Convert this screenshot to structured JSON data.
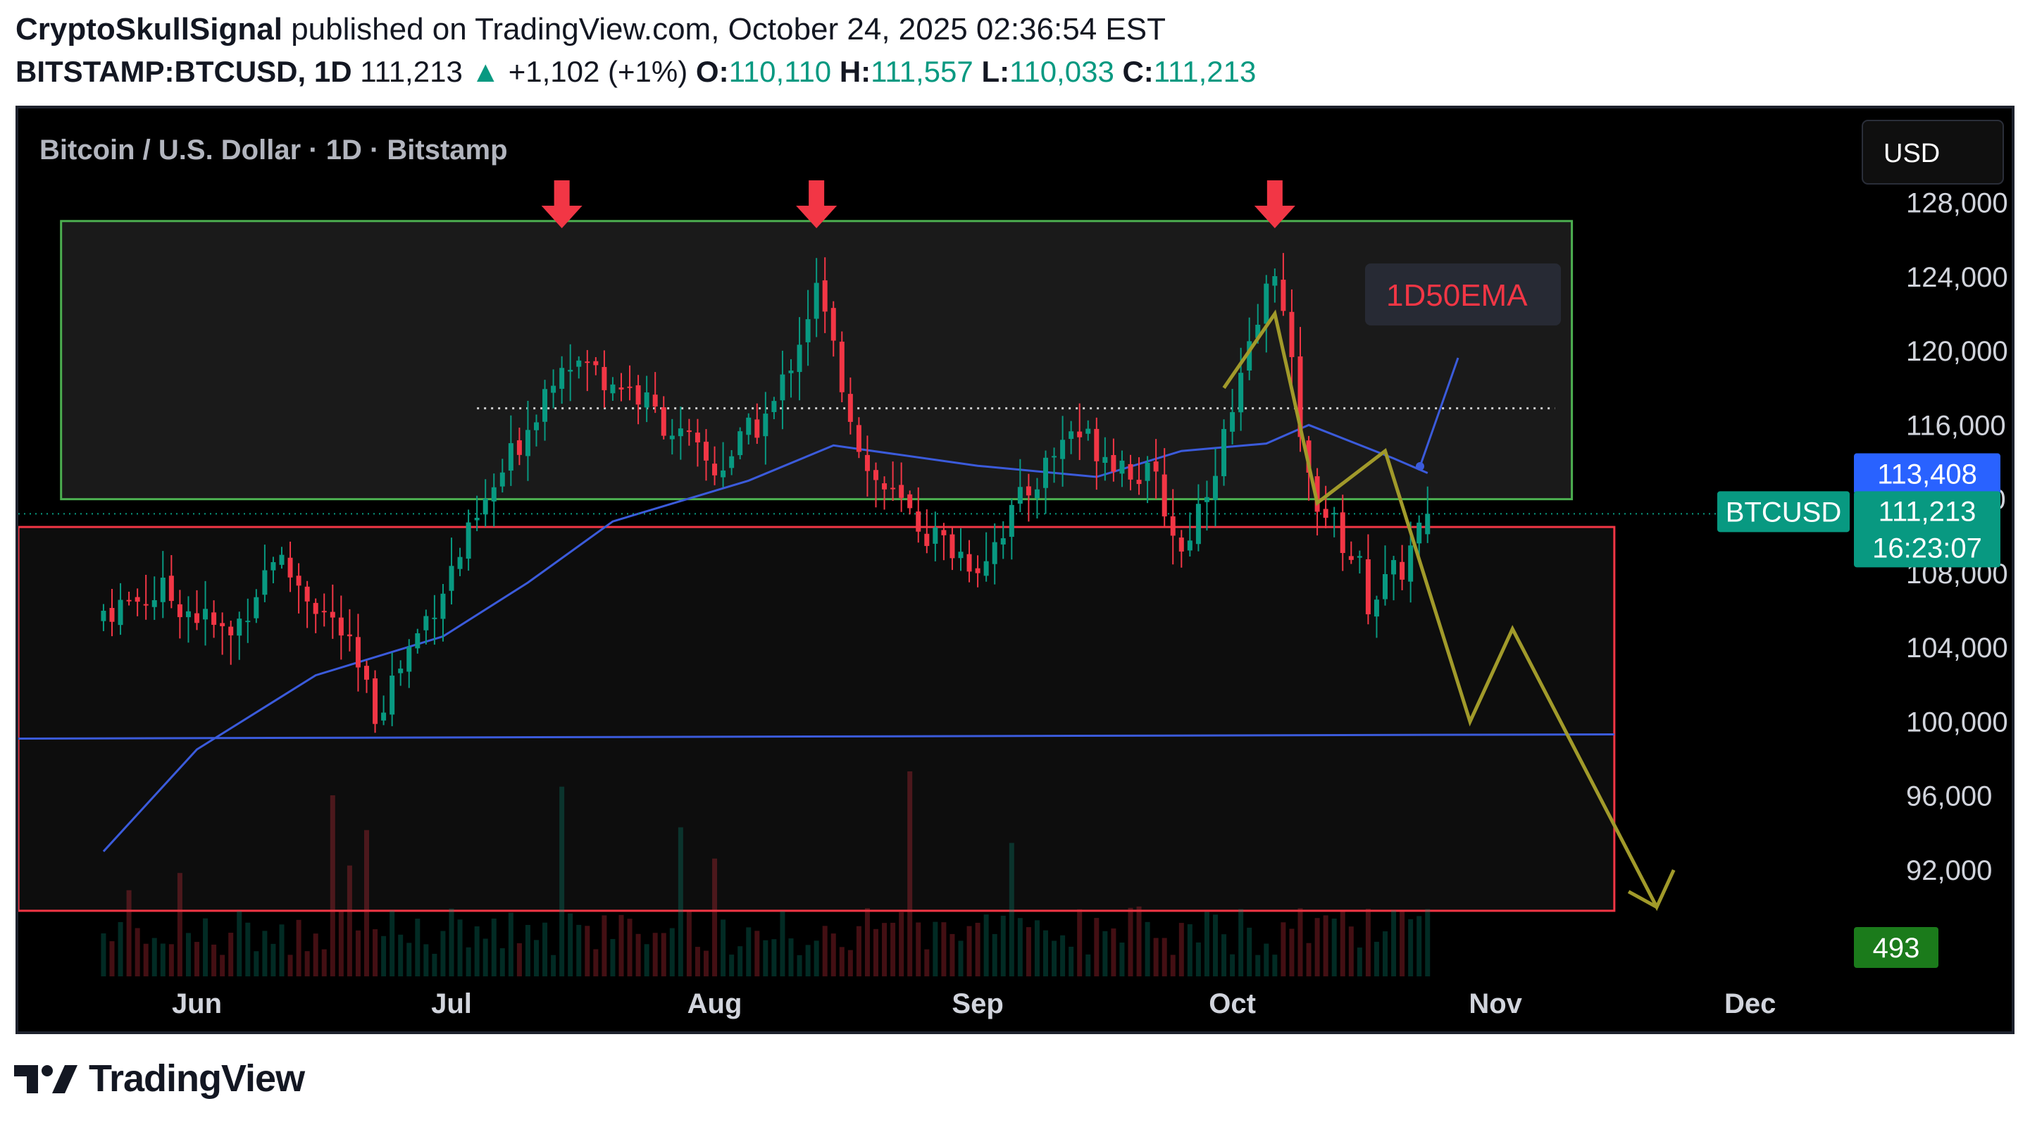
{
  "header": {
    "author": "CryptoSkullSignal",
    "published_text": "published on TradingView.com, October 24, 2025 02:36:54 EST",
    "symbol_interval": "BITSTAMP:BTCUSD, 1D",
    "last_price": "111,213",
    "change_arrow": "▲",
    "change": "+1,102 (+1%)",
    "o_label": "O:",
    "o_value": "110,110",
    "h_label": "H:",
    "h_value": "111,557",
    "l_label": "L:",
    "l_value": "110,033",
    "c_label": "C:",
    "c_value": "111,213"
  },
  "chart": {
    "legend_title": "Bitcoin / U.S. Dollar · 1D · Bitstamp",
    "currency_button": "USD",
    "ema_annotation": "1D50EMA",
    "symbol_tag": "BTCUSD",
    "price_tag": "111,213",
    "countdown": "16:23:07",
    "ema_tag": "113,408",
    "volume_tag": "493"
  },
  "chart_data": {
    "type": "candlestick",
    "title": "Bitcoin / U.S. Dollar · 1D · Bitstamp",
    "x_ticks": [
      "Jun",
      "Jul",
      "Aug",
      "Sep",
      "Oct",
      "Nov",
      "Dec"
    ],
    "y_ticks": [
      92000,
      96000,
      100000,
      104000,
      108000,
      112000,
      116000,
      120000,
      124000,
      128000
    ],
    "y_tick_labels": [
      "92,000",
      "96,000",
      "100,000",
      "104,000",
      "108,000",
      "112,000",
      "116,000",
      "120,000",
      "124,000",
      "128,000"
    ],
    "y_range": [
      88000,
      132000
    ],
    "close_series": [
      {
        "date": "2025-05-21",
        "close": 106000
      },
      {
        "date": "2025-05-28",
        "close": 107000
      },
      {
        "date": "2025-06-05",
        "close": 104500
      },
      {
        "date": "2025-06-10",
        "close": 109000
      },
      {
        "date": "2025-06-18",
        "close": 104800
      },
      {
        "date": "2025-06-22",
        "close": 100500
      },
      {
        "date": "2025-06-30",
        "close": 107300
      },
      {
        "date": "2025-07-10",
        "close": 116000
      },
      {
        "date": "2025-07-14",
        "close": 119800
      },
      {
        "date": "2025-07-22",
        "close": 118000
      },
      {
        "date": "2025-08-01",
        "close": 113500
      },
      {
        "date": "2025-08-08",
        "close": 117000
      },
      {
        "date": "2025-08-13",
        "close": 123300
      },
      {
        "date": "2025-08-19",
        "close": 113500
      },
      {
        "date": "2025-08-26",
        "close": 110200
      },
      {
        "date": "2025-09-01",
        "close": 108500
      },
      {
        "date": "2025-09-12",
        "close": 115800
      },
      {
        "date": "2025-09-22",
        "close": 112800
      },
      {
        "date": "2025-09-25",
        "close": 109100
      },
      {
        "date": "2025-10-01",
        "close": 116500
      },
      {
        "date": "2025-10-06",
        "close": 124800
      },
      {
        "date": "2025-10-10",
        "close": 112800
      },
      {
        "date": "2025-10-16",
        "close": 108200
      },
      {
        "date": "2025-10-17",
        "close": 106500
      },
      {
        "date": "2025-10-21",
        "close": 108300
      },
      {
        "date": "2025-10-24",
        "close": 111213
      }
    ],
    "ema50_series": [
      {
        "date": "2025-05-21",
        "value": 93000
      },
      {
        "date": "2025-06-01",
        "value": 98500
      },
      {
        "date": "2025-06-15",
        "value": 102500
      },
      {
        "date": "2025-06-30",
        "value": 104600
      },
      {
        "date": "2025-07-10",
        "value": 107500
      },
      {
        "date": "2025-07-20",
        "value": 110800
      },
      {
        "date": "2025-08-05",
        "value": 113000
      },
      {
        "date": "2025-08-15",
        "value": 114900
      },
      {
        "date": "2025-09-01",
        "value": 113800
      },
      {
        "date": "2025-09-15",
        "value": 113200
      },
      {
        "date": "2025-09-25",
        "value": 114600
      },
      {
        "date": "2025-10-05",
        "value": 115000
      },
      {
        "date": "2025-10-10",
        "value": 116000
      },
      {
        "date": "2025-10-20",
        "value": 114200
      },
      {
        "date": "2025-10-24",
        "value": 113408
      }
    ],
    "annotations": {
      "range_box": {
        "price_low": 112000,
        "price_high": 127000,
        "date_start": "2025-05-16",
        "date_end": "2025-11-10"
      },
      "lower_box": {
        "price_low": 89800,
        "price_high": 110500,
        "date_end": "2025-11-15"
      },
      "dotted_level": 116900,
      "support_line_price": 99200,
      "arrows_at_dates": [
        "2025-07-14",
        "2025-08-13",
        "2025-10-06"
      ],
      "projection_path": [
        {
          "date": "2025-09-30",
          "price": 118000
        },
        {
          "date": "2025-10-06",
          "price": 122000
        },
        {
          "date": "2025-10-11",
          "price": 111800
        },
        {
          "date": "2025-10-19",
          "price": 114600
        },
        {
          "date": "2025-10-29",
          "price": 100000
        },
        {
          "date": "2025-11-03",
          "price": 105000
        },
        {
          "date": "2025-11-20",
          "price": 90000
        },
        {
          "date": "2025-11-22",
          "price": 92000
        }
      ]
    },
    "colors": {
      "up": "#089981",
      "down": "#f23645",
      "ema": "#3b5bdb",
      "range_box": "#4caf50",
      "lower_box": "#f23645",
      "projection": "#a19a2a",
      "annotation_text": "#f23645",
      "volume_tag_bg": "#1b7b1b"
    }
  },
  "footer": {
    "brand": "TradingView"
  }
}
